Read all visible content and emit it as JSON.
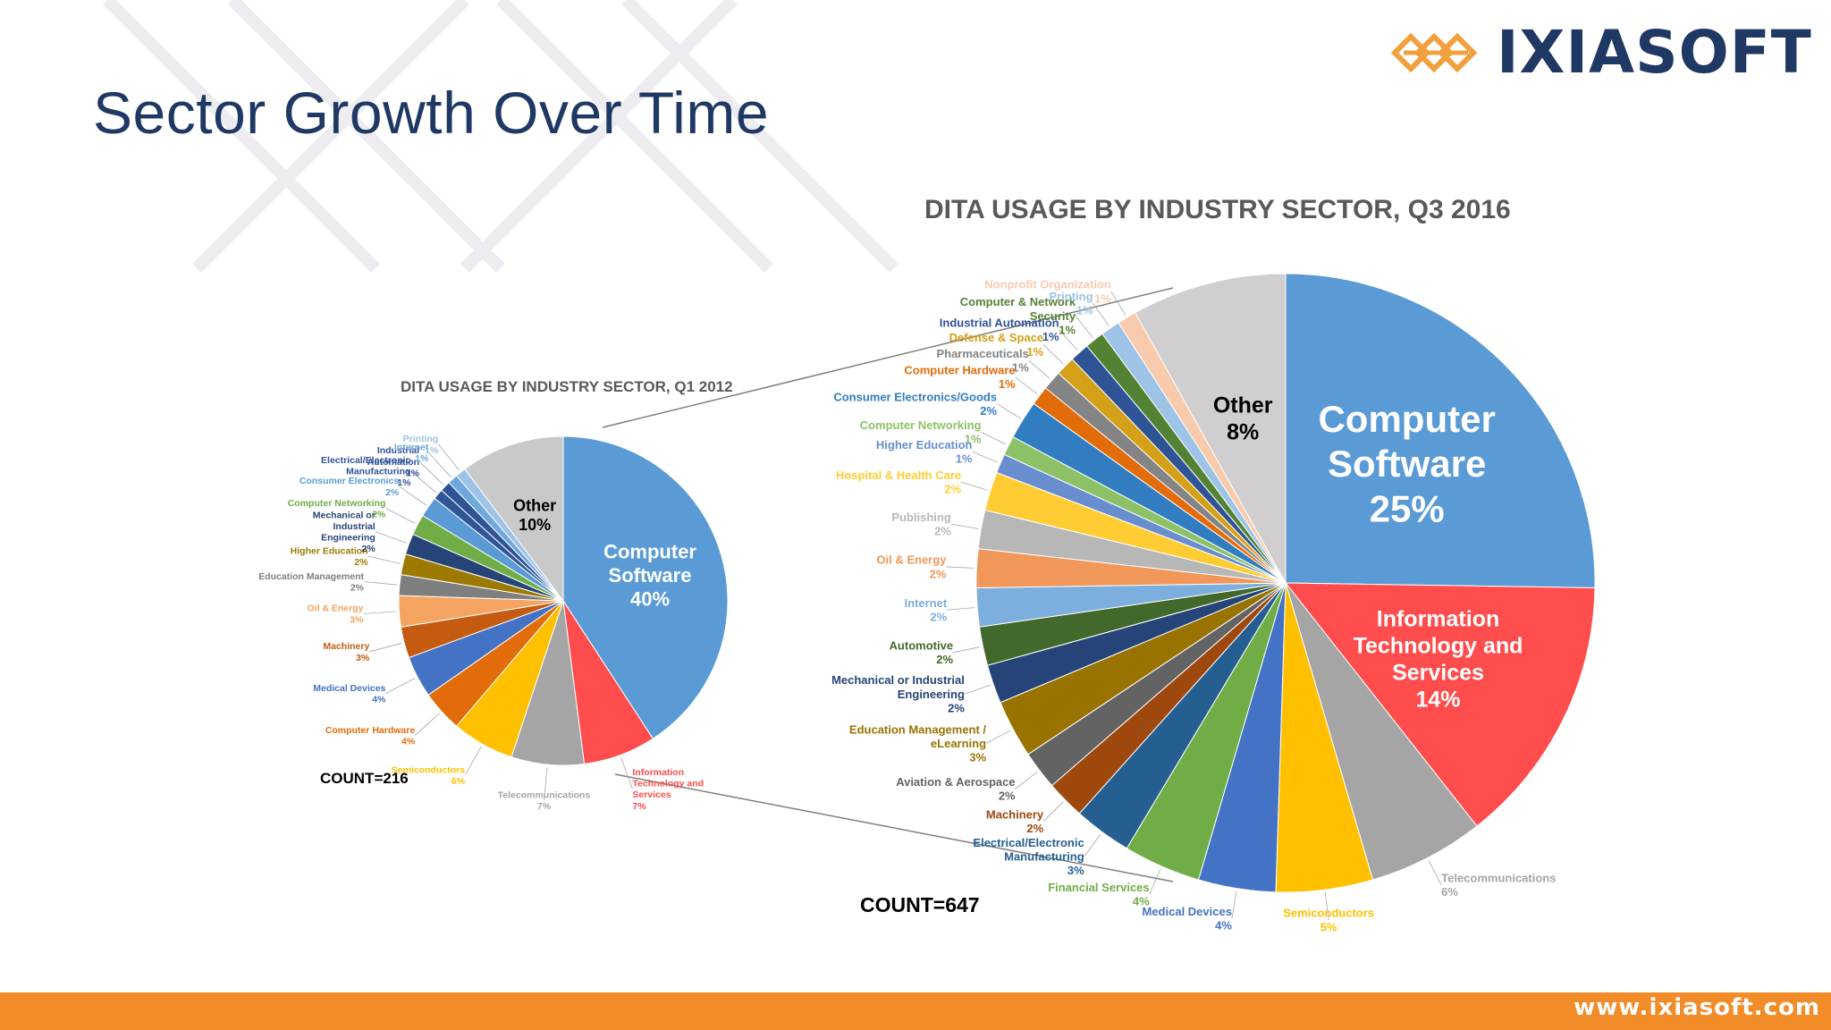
{
  "slide": {
    "title": "Sector Growth Over Time",
    "logo_text": "IXIASOFT",
    "footer_url": "www.ixiasoft.com"
  },
  "colors": {
    "title": "#1f3864",
    "footer": "#f28c28",
    "logo_icon": "#f2a03d"
  },
  "chart_data": [
    {
      "type": "pie",
      "title": "DITA USAGE BY INDUSTRY SECTOR, Q1 2012",
      "count_label": "COUNT=216",
      "unit": "%",
      "slices": [
        {
          "label": "Computer Software",
          "value": 40,
          "color": "#5b9bd5"
        },
        {
          "label": "Information Technology and Services",
          "value": 7,
          "color": "#ff4d4d"
        },
        {
          "label": "Telecommunications",
          "value": 7,
          "color": "#a5a5a5"
        },
        {
          "label": "Semiconductors",
          "value": 6,
          "color": "#ffc000"
        },
        {
          "label": "Computer Hardware",
          "value": 4,
          "color": "#e36c0a"
        },
        {
          "label": "Medical Devices",
          "value": 4,
          "color": "#4472c4"
        },
        {
          "label": "Machinery",
          "value": 3,
          "color": "#c55a11"
        },
        {
          "label": "Oil & Energy",
          "value": 3,
          "color": "#f4a460"
        },
        {
          "label": "Education Management",
          "value": 2,
          "color": "#7f7f7f"
        },
        {
          "label": "Higher Education",
          "value": 2,
          "color": "#9c7a00"
        },
        {
          "label": "Mechanical or Industrial Engineering",
          "value": 2,
          "color": "#264478"
        },
        {
          "label": "Computer Networking",
          "value": 2,
          "color": "#70ad47"
        },
        {
          "label": "Consumer Electronics",
          "value": 2,
          "color": "#5b9bd5"
        },
        {
          "label": "Electrical/Electronic Manufacturing",
          "value": 1,
          "color": "#2e5597"
        },
        {
          "label": "Industrial Automation",
          "value": 1,
          "color": "#2f5496"
        },
        {
          "label": "Internet",
          "value": 1,
          "color": "#6fa8dc"
        },
        {
          "label": "Printing",
          "value": 1,
          "color": "#9dc3e6"
        },
        {
          "label": "Other",
          "value": 10,
          "color": "#c9c9c9"
        }
      ]
    },
    {
      "type": "pie",
      "title": "DITA USAGE BY INDUSTRY SECTOR, Q3 2016",
      "count_label": "COUNT=647",
      "unit": "%",
      "slices": [
        {
          "label": "Computer Software",
          "value": 25,
          "color": "#5b9bd5"
        },
        {
          "label": "Information Technology and Services",
          "value": 14,
          "color": "#ff4d4d"
        },
        {
          "label": "Telecommunications",
          "value": 6,
          "color": "#a5a5a5"
        },
        {
          "label": "Semiconductors",
          "value": 5,
          "color": "#ffc000"
        },
        {
          "label": "Medical Devices",
          "value": 4,
          "color": "#4472c4"
        },
        {
          "label": "Financial Services",
          "value": 4,
          "color": "#70ad47"
        },
        {
          "label": "Electrical/Electronic Manufacturing",
          "value": 3,
          "color": "#255e91"
        },
        {
          "label": "Machinery",
          "value": 2,
          "color": "#9e480e"
        },
        {
          "label": "Aviation & Aerospace",
          "value": 2,
          "color": "#636363"
        },
        {
          "label": "Education Management / eLearning",
          "value": 3,
          "color": "#997300"
        },
        {
          "label": "Mechanical or Industrial Engineering",
          "value": 2,
          "color": "#264478"
        },
        {
          "label": "Automotive",
          "value": 2,
          "color": "#43682b"
        },
        {
          "label": "Internet",
          "value": 2,
          "color": "#7cafdd"
        },
        {
          "label": "Oil & Energy",
          "value": 2,
          "color": "#f1975a"
        },
        {
          "label": "Publishing",
          "value": 2,
          "color": "#b7b7b7"
        },
        {
          "label": "Hospital & Health Care",
          "value": 2,
          "color": "#ffcd33"
        },
        {
          "label": "Higher Education",
          "value": 1,
          "color": "#698ed0"
        },
        {
          "label": "Computer Networking",
          "value": 1,
          "color": "#8cc168"
        },
        {
          "label": "Consumer Electronics/Goods",
          "value": 2,
          "color": "#327dc2"
        },
        {
          "label": "Computer Hardware",
          "value": 1,
          "color": "#e36c0a"
        },
        {
          "label": "Pharmaceuticals",
          "value": 1,
          "color": "#848484"
        },
        {
          "label": "Defense & Space",
          "value": 1,
          "color": "#d4a017"
        },
        {
          "label": "Industrial Automation",
          "value": 1,
          "color": "#2f5496"
        },
        {
          "label": "Computer & Network Security",
          "value": 1,
          "color": "#548235"
        },
        {
          "label": "Printing",
          "value": 1,
          "color": "#9dc3e6"
        },
        {
          "label": "Nonprofit Organization",
          "value": 1,
          "color": "#f8cbad"
        },
        {
          "label": "Other",
          "value": 8,
          "color": "#d0cece"
        }
      ]
    }
  ]
}
